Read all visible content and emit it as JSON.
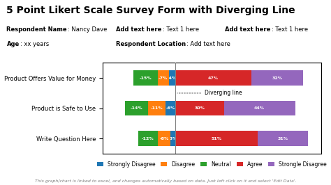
{
  "chart_data": {
    "type": "bar",
    "orientation": "horizontal",
    "stacked": true,
    "title": "5 Point Likert Scale Survey Form with Diverging Line",
    "categories": [
      "Product Offers Value for Money",
      "Product is Safe to Use",
      "Write Question Here"
    ],
    "series": [
      {
        "name": "Strongly Disagree",
        "values": [
          -4,
          -6,
          -3
        ],
        "value_labels": [
          "-4%",
          "-6%",
          "-3%"
        ]
      },
      {
        "name": "Disagree",
        "values": [
          -7,
          -11,
          -8
        ],
        "value_labels": [
          "-7%",
          "-11%",
          "-8%"
        ]
      },
      {
        "name": "Neutral",
        "values": [
          -15,
          -14,
          -12
        ],
        "value_labels": [
          "-15%",
          "-14%",
          "-12%"
        ]
      },
      {
        "name": "Agree",
        "values": [
          47,
          30,
          51
        ],
        "value_labels": [
          "47%",
          "30%",
          "51%"
        ]
      },
      {
        "name": "Strongle Disagree",
        "values": [
          32,
          44,
          31
        ],
        "value_labels": [
          "32%",
          "44%",
          "31%"
        ]
      }
    ],
    "xlim": [
      -45,
      90
    ],
    "tick_labels": "y",
    "data_labels": true,
    "grid": false,
    "legend": "lower center",
    "annotations": [
      {
        "text": "Diverging line",
        "x": 0
      }
    ],
    "header": [
      [
        [
          "Respondent Name",
          ": Nancy Dave"
        ],
        [
          "Add text here",
          ": Text 1 here"
        ],
        [
          "Add text here",
          ": Text 1 here"
        ]
      ],
      [
        [
          "Age",
          ": xx years"
        ],
        [
          "Respondent Location",
          ": Add text here"
        ]
      ]
    ],
    "footer": "This graph/chart is linked to excel, and changes automatically based on data. Just left click on it and select 'Edit Data'."
  }
}
